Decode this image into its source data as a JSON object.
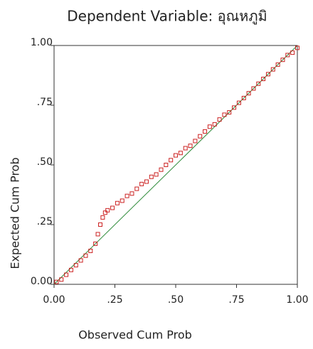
{
  "chart_data": {
    "type": "scatter",
    "title": "Dependent Variable: อุณหภูมิ",
    "x_label": "Observed Cum Prob",
    "y_label": "Expected Cum Prob",
    "color": "#cc2222",
    "line_color": "#2e8b3a",
    "xlim": [
      0,
      1
    ],
    "ylim": [
      0,
      1
    ],
    "xticks": [
      {
        "value": 0,
        "label": "0.00"
      },
      {
        "value": 0.25,
        "label": ".25"
      },
      {
        "value": 0.5,
        "label": ".50"
      },
      {
        "value": 0.75,
        "label": ".75"
      },
      {
        "value": 1,
        "label": "1.00"
      }
    ],
    "yticks": [
      {
        "value": 0,
        "label": "0.00"
      },
      {
        "value": 0.25,
        "label": ".25"
      },
      {
        "value": 0.5,
        "label": ".50"
      },
      {
        "value": 0.75,
        "label": ".75"
      },
      {
        "value": 1,
        "label": "1.00"
      }
    ],
    "x": [
      0.01,
      0.03,
      0.05,
      0.07,
      0.09,
      0.11,
      0.13,
      0.15,
      0.17,
      0.18,
      0.19,
      0.2,
      0.21,
      0.22,
      0.24,
      0.26,
      0.28,
      0.3,
      0.32,
      0.34,
      0.36,
      0.38,
      0.4,
      0.42,
      0.44,
      0.46,
      0.48,
      0.5,
      0.52,
      0.54,
      0.56,
      0.58,
      0.6,
      0.62,
      0.64,
      0.66,
      0.68,
      0.7,
      0.72,
      0.74,
      0.76,
      0.78,
      0.8,
      0.82,
      0.84,
      0.86,
      0.88,
      0.9,
      0.92,
      0.94,
      0.96,
      0.98,
      1.0
    ],
    "values": [
      0.01,
      0.02,
      0.04,
      0.06,
      0.08,
      0.1,
      0.12,
      0.14,
      0.17,
      0.21,
      0.25,
      0.28,
      0.3,
      0.31,
      0.32,
      0.34,
      0.35,
      0.37,
      0.38,
      0.4,
      0.42,
      0.43,
      0.45,
      0.46,
      0.48,
      0.5,
      0.52,
      0.54,
      0.55,
      0.57,
      0.58,
      0.6,
      0.62,
      0.64,
      0.66,
      0.67,
      0.69,
      0.71,
      0.72,
      0.74,
      0.76,
      0.78,
      0.8,
      0.82,
      0.84,
      0.86,
      0.88,
      0.9,
      0.92,
      0.94,
      0.96,
      0.97,
      0.99
    ]
  }
}
